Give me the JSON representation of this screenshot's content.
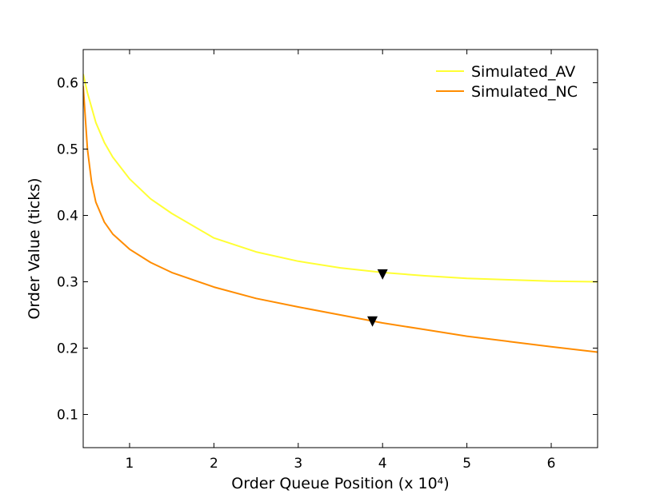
{
  "chart_data": {
    "type": "line",
    "title": "",
    "xlabel": "Order Queue Position (x 10⁴)",
    "ylabel": "Order Value (ticks)",
    "xlim": [
      0.45,
      6.55
    ],
    "ylim": [
      0.05,
      0.65
    ],
    "xticks": [
      1,
      2,
      3,
      4,
      5,
      6
    ],
    "yticks": [
      0.1,
      0.2,
      0.3,
      0.4,
      0.5,
      0.6
    ],
    "xtick_labels": [
      "1",
      "2",
      "3",
      "4",
      "5",
      "6"
    ],
    "ytick_labels": [
      "0.1",
      "0.2",
      "0.3",
      "0.4",
      "0.5",
      "0.6"
    ],
    "grid": false,
    "legend_position": "top-right",
    "series": [
      {
        "name": "Simulated_AV",
        "color": "#ffff33",
        "x": [
          0.45,
          0.5,
          0.6,
          0.7,
          0.8,
          1.0,
          1.25,
          1.5,
          2.0,
          2.5,
          3.0,
          3.5,
          4.0,
          4.5,
          5.0,
          5.5,
          6.0,
          6.55
        ],
        "y": [
          0.613,
          0.585,
          0.54,
          0.51,
          0.488,
          0.455,
          0.425,
          0.403,
          0.366,
          0.345,
          0.331,
          0.321,
          0.314,
          0.309,
          0.305,
          0.303,
          0.301,
          0.3
        ]
      },
      {
        "name": "Simulated_NC",
        "color": "#ff8c00",
        "x": [
          0.45,
          0.5,
          0.55,
          0.6,
          0.7,
          0.8,
          1.0,
          1.25,
          1.5,
          2.0,
          2.5,
          3.0,
          3.5,
          4.0,
          4.5,
          5.0,
          5.5,
          6.0,
          6.55
        ],
        "y": [
          0.595,
          0.5,
          0.45,
          0.42,
          0.39,
          0.372,
          0.349,
          0.329,
          0.314,
          0.292,
          0.275,
          0.262,
          0.25,
          0.238,
          0.228,
          0.218,
          0.21,
          0.202,
          0.194
        ]
      }
    ],
    "markers": [
      {
        "series": "Simulated_AV",
        "x": 4.0,
        "y": 0.311,
        "shape": "triangle-down"
      },
      {
        "series": "Simulated_NC",
        "x": 3.88,
        "y": 0.24,
        "shape": "triangle-down"
      }
    ]
  }
}
